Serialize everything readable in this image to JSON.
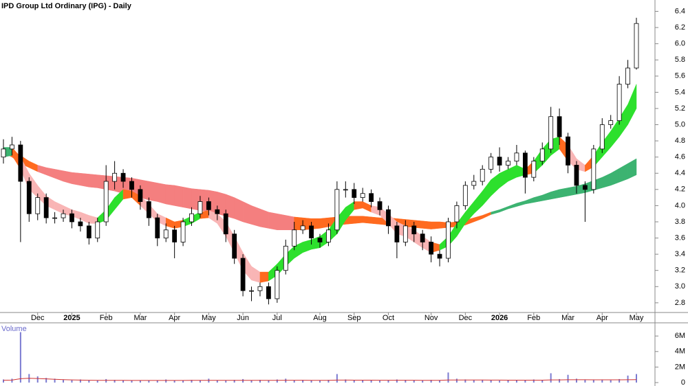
{
  "chart_data": {
    "type": "candlestick",
    "title": "IPD Group Ltd Ordinary (IPG) - Daily",
    "categories": [
      null,
      null,
      null,
      null,
      "Dec",
      null,
      null,
      null,
      "2025",
      null,
      null,
      null,
      "Feb",
      null,
      null,
      null,
      "Mar",
      null,
      null,
      null,
      "Apr",
      null,
      null,
      null,
      "May",
      null,
      null,
      null,
      "Jun",
      null,
      null,
      null,
      "Jul",
      null,
      null,
      null,
      null,
      "Aug",
      null,
      null,
      null,
      "Sep",
      null,
      null,
      null,
      "Oct",
      null,
      null,
      null,
      null,
      "Nov",
      null,
      null,
      null,
      "Dec",
      null,
      null,
      null,
      "2026",
      null,
      null,
      null,
      "Feb",
      null,
      null,
      null,
      "Mar",
      null,
      null,
      null,
      "Apr",
      null,
      null,
      null,
      "May"
    ],
    "open": [
      4.6,
      4.7,
      4.75,
      4.3,
      3.9,
      4.1,
      3.85,
      3.85,
      3.9,
      3.8,
      3.75,
      3.6,
      3.8,
      4.3,
      4.4,
      4.3,
      4.2,
      4.05,
      3.85,
      3.6,
      3.7,
      3.55,
      3.8,
      3.9,
      4.05,
      3.95,
      3.9,
      3.65,
      3.35,
      2.95,
      2.95,
      3.0,
      2.85,
      3.2,
      3.5,
      3.7,
      3.75,
      3.6,
      3.55,
      3.7,
      4.2,
      4.2,
      4.1,
      4.15,
      4.05,
      3.95,
      3.75,
      3.55,
      3.75,
      3.65,
      3.55,
      3.4,
      3.35,
      3.8,
      4.0,
      4.25,
      4.3,
      4.45,
      4.6,
      4.5,
      4.55,
      4.65,
      4.35,
      4.55,
      4.7,
      5.1,
      4.85,
      4.5,
      4.25,
      4.2,
      4.7,
      5.0,
      5.05,
      5.5,
      5.7
    ],
    "high": [
      4.82,
      4.85,
      4.8,
      4.35,
      4.15,
      4.15,
      3.92,
      3.95,
      3.95,
      3.85,
      3.8,
      3.85,
      4.5,
      4.55,
      4.45,
      4.35,
      4.25,
      4.1,
      3.9,
      3.78,
      3.75,
      3.85,
      3.98,
      4.12,
      4.1,
      4.0,
      3.95,
      3.7,
      3.4,
      3.0,
      3.05,
      3.05,
      3.25,
      3.58,
      3.8,
      3.82,
      3.8,
      3.65,
      3.78,
      4.3,
      4.3,
      4.28,
      4.22,
      4.2,
      4.1,
      4.0,
      3.8,
      3.82,
      3.8,
      3.7,
      3.62,
      3.45,
      3.85,
      4.05,
      4.3,
      4.38,
      4.5,
      4.65,
      4.72,
      4.6,
      4.75,
      4.68,
      4.6,
      4.78,
      5.22,
      5.2,
      4.9,
      4.55,
      4.3,
      4.75,
      5.08,
      5.12,
      5.6,
      5.8,
      6.32
    ],
    "low": [
      4.52,
      4.62,
      3.55,
      3.8,
      3.82,
      3.78,
      3.78,
      3.8,
      3.72,
      3.68,
      3.52,
      3.55,
      3.75,
      4.2,
      4.22,
      4.1,
      3.95,
      3.75,
      3.5,
      3.55,
      3.35,
      3.5,
      3.75,
      3.85,
      3.88,
      3.82,
      3.55,
      3.28,
      2.88,
      2.82,
      2.88,
      2.78,
      2.8,
      3.15,
      3.45,
      3.65,
      3.52,
      3.48,
      3.5,
      3.65,
      4.1,
      4.02,
      4.05,
      3.98,
      3.88,
      3.65,
      3.35,
      3.5,
      3.55,
      3.45,
      3.3,
      3.25,
      3.3,
      3.72,
      3.95,
      4.2,
      4.25,
      4.4,
      4.42,
      4.45,
      4.5,
      4.15,
      4.3,
      4.5,
      4.65,
      4.75,
      4.4,
      4.15,
      3.8,
      4.15,
      4.65,
      4.95,
      5.0,
      5.45,
      5.68
    ],
    "close": [
      4.7,
      4.75,
      4.3,
      3.9,
      4.1,
      3.85,
      3.85,
      3.9,
      3.8,
      3.75,
      3.6,
      3.8,
      4.3,
      4.4,
      4.3,
      4.2,
      4.05,
      3.85,
      3.6,
      3.7,
      3.55,
      3.8,
      3.9,
      4.05,
      3.95,
      3.9,
      3.65,
      3.35,
      2.95,
      2.95,
      3.0,
      2.85,
      3.2,
      3.5,
      3.7,
      3.75,
      3.6,
      3.55,
      3.7,
      4.2,
      4.2,
      4.1,
      4.15,
      4.05,
      3.95,
      3.75,
      3.55,
      3.75,
      3.65,
      3.55,
      3.4,
      3.35,
      3.8,
      4.0,
      4.25,
      4.3,
      4.45,
      4.6,
      4.5,
      4.55,
      4.65,
      4.35,
      4.55,
      4.7,
      5.1,
      4.85,
      4.5,
      4.25,
      4.2,
      4.7,
      5.0,
      5.05,
      5.5,
      5.7,
      6.25
    ],
    "up_color": "#ffffff",
    "down_color": "#000000",
    "ribbons": [
      {
        "upper": [
          4.72,
          4.68,
          4.62,
          4.55,
          4.5,
          4.47,
          4.45,
          4.43,
          4.41,
          4.4,
          4.39,
          4.38,
          4.37,
          4.36,
          4.35,
          4.34,
          4.32,
          4.3,
          4.28,
          4.26,
          4.25,
          4.23,
          4.21,
          4.2,
          4.19,
          4.17,
          4.14,
          4.1,
          4.05,
          4.0,
          3.96,
          3.92,
          3.9,
          3.88,
          3.86,
          3.85,
          3.84,
          3.84,
          3.85,
          3.86,
          3.87,
          3.87,
          3.87,
          3.86,
          3.85,
          3.85,
          3.84,
          3.83,
          3.82,
          3.81,
          3.8,
          3.8,
          3.79,
          3.8,
          3.82,
          3.85,
          3.88,
          3.92,
          3.95,
          3.99,
          4.03,
          4.06,
          4.1,
          4.13,
          4.17,
          4.2,
          4.22,
          4.24,
          4.27,
          4.31,
          4.35,
          4.4,
          4.46,
          4.52,
          4.58
        ],
        "lower": [
          4.65,
          4.6,
          4.52,
          4.47,
          4.42,
          4.38,
          4.34,
          4.3,
          4.27,
          4.25,
          4.23,
          4.22,
          4.2,
          4.18,
          4.15,
          4.12,
          4.1,
          4.07,
          4.05,
          4.02,
          4.0,
          3.98,
          3.96,
          3.94,
          3.93,
          3.9,
          3.87,
          3.84,
          3.8,
          3.77,
          3.74,
          3.72,
          3.7,
          3.7,
          3.7,
          3.7,
          3.71,
          3.72,
          3.74,
          3.76,
          3.77,
          3.78,
          3.79,
          3.78,
          3.77,
          3.76,
          3.75,
          3.74,
          3.73,
          3.72,
          3.71,
          3.72,
          3.73,
          3.74,
          3.76,
          3.8,
          3.84,
          3.89,
          3.92,
          3.96,
          3.99,
          4.02,
          4.04,
          4.06,
          4.08,
          4.1,
          4.12,
          4.14,
          4.16,
          4.19,
          4.22,
          4.25,
          4.29,
          4.33,
          4.38
        ],
        "colors": [
          "#ff6a1f",
          "#ff6a1f",
          "#ff6a1f",
          "#ff6a1f",
          "#f47f7f",
          "#f47f7f",
          "#f47f7f",
          "#f47f7f",
          "#f47f7f",
          "#f47f7f",
          "#f47f7f",
          "#f47f7f",
          "#f47f7f",
          "#f47f7f",
          "#f47f7f",
          "#f47f7f",
          "#f47f7f",
          "#f47f7f",
          "#f47f7f",
          "#f47f7f",
          "#f47f7f",
          "#f47f7f",
          "#f47f7f",
          "#f47f7f",
          "#f47f7f",
          "#f47f7f",
          "#f47f7f",
          "#f47f7f",
          "#f47f7f",
          "#f47f7f",
          "#f47f7f",
          "#f47f7f",
          "#f47f7f",
          "#f47f7f",
          "#ff6a1f",
          "#ff6a1f",
          "#ff6a1f",
          "#ff6a1f",
          "#ff6a1f",
          "#ff6a1f",
          "#ff6a1f",
          "#ff6a1f",
          "#ff6a1f",
          "#ff6a1f",
          "#ff6a1f",
          "#ff6a1f",
          "#ff6a1f",
          "#ff6a1f",
          "#ff6a1f",
          "#ff6a1f",
          "#ff6a1f",
          "#ff6a1f",
          "#ff6a1f",
          "#ff6a1f",
          "#ff6a1f",
          "#ff6a1f",
          "#ff6a1f",
          "#3cb371",
          "#3cb371",
          "#3cb371",
          "#3cb371",
          "#3cb371",
          "#3cb371",
          "#3cb371",
          "#3cb371",
          "#3cb371",
          "#3cb371",
          "#3cb371",
          "#3cb371",
          "#3cb371",
          "#3cb371",
          "#3cb371",
          "#3cb371",
          "#3cb371",
          "#3cb371"
        ]
      },
      {
        "upper": [
          4.72,
          4.72,
          4.6,
          4.4,
          4.25,
          4.12,
          4.05,
          4.0,
          3.95,
          3.92,
          3.88,
          3.85,
          3.95,
          4.1,
          4.2,
          4.18,
          4.12,
          4.02,
          3.9,
          3.85,
          3.8,
          3.82,
          3.87,
          3.92,
          3.94,
          3.9,
          3.8,
          3.62,
          3.42,
          3.25,
          3.18,
          3.18,
          3.28,
          3.4,
          3.5,
          3.55,
          3.58,
          3.62,
          3.7,
          3.85,
          3.98,
          4.05,
          4.05,
          4.0,
          3.98,
          3.9,
          3.8,
          3.75,
          3.7,
          3.62,
          3.55,
          3.52,
          3.62,
          3.78,
          3.92,
          4.05,
          4.18,
          4.32,
          4.4,
          4.45,
          4.5,
          4.45,
          4.55,
          4.7,
          4.82,
          4.85,
          4.75,
          4.58,
          4.5,
          4.62,
          4.78,
          4.92,
          5.08,
          5.25,
          5.5
        ],
        "lower": [
          4.6,
          4.62,
          4.45,
          4.2,
          4.1,
          4.0,
          3.95,
          3.9,
          3.87,
          3.83,
          3.78,
          3.78,
          3.82,
          3.95,
          4.08,
          4.1,
          4.0,
          3.9,
          3.8,
          3.75,
          3.72,
          3.74,
          3.78,
          3.84,
          3.85,
          3.78,
          3.62,
          3.42,
          3.2,
          3.08,
          3.05,
          3.07,
          3.14,
          3.25,
          3.35,
          3.42,
          3.46,
          3.48,
          3.55,
          3.65,
          3.82,
          3.95,
          3.97,
          3.92,
          3.88,
          3.78,
          3.65,
          3.62,
          3.55,
          3.48,
          3.42,
          3.45,
          3.5,
          3.62,
          3.78,
          3.9,
          4.0,
          4.12,
          4.22,
          4.3,
          4.35,
          4.38,
          4.4,
          4.5,
          4.62,
          4.7,
          4.55,
          4.45,
          4.42,
          4.48,
          4.6,
          4.72,
          4.85,
          5.0,
          5.2
        ],
        "colors": [
          "#3cb371",
          "#ff6a1f",
          "#f9b5b5",
          "#f9b5b5",
          "#f9b5b5",
          "#f9b5b5",
          "#f9b5b5",
          "#f9b5b5",
          "#f9b5b5",
          "#f9b5b5",
          "#f9b5b5",
          "#2de02d",
          "#2de02d",
          "#2de02d",
          "#ff6a1f",
          "#ff6a1f",
          "#f9b5b5",
          "#f9b5b5",
          "#f9b5b5",
          "#ff6a1f",
          "#ff6a1f",
          "#2de02d",
          "#2de02d",
          "#ff6a1f",
          "#f9b5b5",
          "#f9b5b5",
          "#f9b5b5",
          "#f9b5b5",
          "#f9b5b5",
          "#f9b5b5",
          "#ff6a1f",
          "#2de02d",
          "#2de02d",
          "#2de02d",
          "#2de02d",
          "#2de02d",
          "#2de02d",
          "#2de02d",
          "#2de02d",
          "#2de02d",
          "#2de02d",
          "#ff6a1f",
          "#ff6a1f",
          "#f9b5b5",
          "#f9b5b5",
          "#f9b5b5",
          "#f9b5b5",
          "#f9b5b5",
          "#f9b5b5",
          "#f9b5b5",
          "#ff6a1f",
          "#2de02d",
          "#2de02d",
          "#2de02d",
          "#2de02d",
          "#2de02d",
          "#2de02d",
          "#2de02d",
          "#2de02d",
          "#2de02d",
          "#2de02d",
          "#ff6a1f",
          "#2de02d",
          "#2de02d",
          "#2de02d",
          "#ff6a1f",
          "#f9b5b5",
          "#f9b5b5",
          "#ff6a1f",
          "#2de02d",
          "#2de02d",
          "#2de02d",
          "#2de02d",
          "#2de02d",
          "#2de02d"
        ]
      }
    ],
    "ylim": [
      2.68,
      6.54
    ],
    "yticks": [
      2.8,
      {
        "value": 3.0,
        "label": "3.0"
      },
      3.2,
      3.4,
      3.6,
      3.8,
      {
        "value": 4.0,
        "label": "4.0"
      },
      4.2,
      4.4,
      4.6,
      4.8,
      {
        "value": 5.0,
        "label": "5.0"
      },
      5.2,
      5.4,
      5.6,
      5.8,
      {
        "value": 6.0,
        "label": "6.0"
      },
      6.2,
      6.4
    ],
    "volume": {
      "label": "Volume",
      "values": [
        400000,
        500000,
        6500000,
        1100000,
        800000,
        600000,
        500000,
        350000,
        300000,
        400000,
        300000,
        250000,
        450000,
        350000,
        300000,
        300000,
        250000,
        250000,
        300000,
        400000,
        300000,
        250000,
        350000,
        300000,
        500000,
        300000,
        250000,
        350000,
        450000,
        300000,
        350000,
        250000,
        400000,
        500000,
        300000,
        350000,
        300000,
        250000,
        350000,
        1100000,
        400000,
        300000,
        350000,
        300000,
        250000,
        300000,
        400000,
        350000,
        300000,
        250000,
        350000,
        300000,
        1300000,
        500000,
        400000,
        300000,
        350000,
        300000,
        250000,
        300000,
        350000,
        300000,
        400000,
        350000,
        1200000,
        450000,
        1000000,
        500000,
        400000,
        350000,
        400000,
        300000,
        450000,
        900000,
        1100000
      ],
      "color": "#7b7bd1",
      "ma_values": [
        300000,
        320000,
        500000,
        550000,
        520000,
        480000,
        420000,
        380000,
        340000,
        320000,
        300000,
        290000,
        290000,
        290000,
        285000,
        280000,
        280000,
        275000,
        275000,
        280000,
        280000,
        280000,
        285000,
        285000,
        290000,
        290000,
        285000,
        285000,
        290000,
        290000,
        290000,
        285000,
        290000,
        295000,
        295000,
        295000,
        290000,
        285000,
        290000,
        320000,
        320000,
        315000,
        310000,
        305000,
        300000,
        300000,
        300000,
        300000,
        295000,
        290000,
        290000,
        290000,
        330000,
        335000,
        335000,
        330000,
        330000,
        325000,
        320000,
        315000,
        315000,
        315000,
        315000,
        315000,
        340000,
        345000,
        360000,
        360000,
        360000,
        355000,
        355000,
        350000,
        350000,
        365000,
        380000
      ],
      "ma_color": "#d03030",
      "ylim": [
        0,
        7700000
      ],
      "yticks": [
        0,
        {
          "value": 2000000,
          "label": "2M"
        },
        {
          "value": 4000000,
          "label": "4M"
        },
        {
          "value": 6000000,
          "label": "6M"
        }
      ]
    }
  }
}
